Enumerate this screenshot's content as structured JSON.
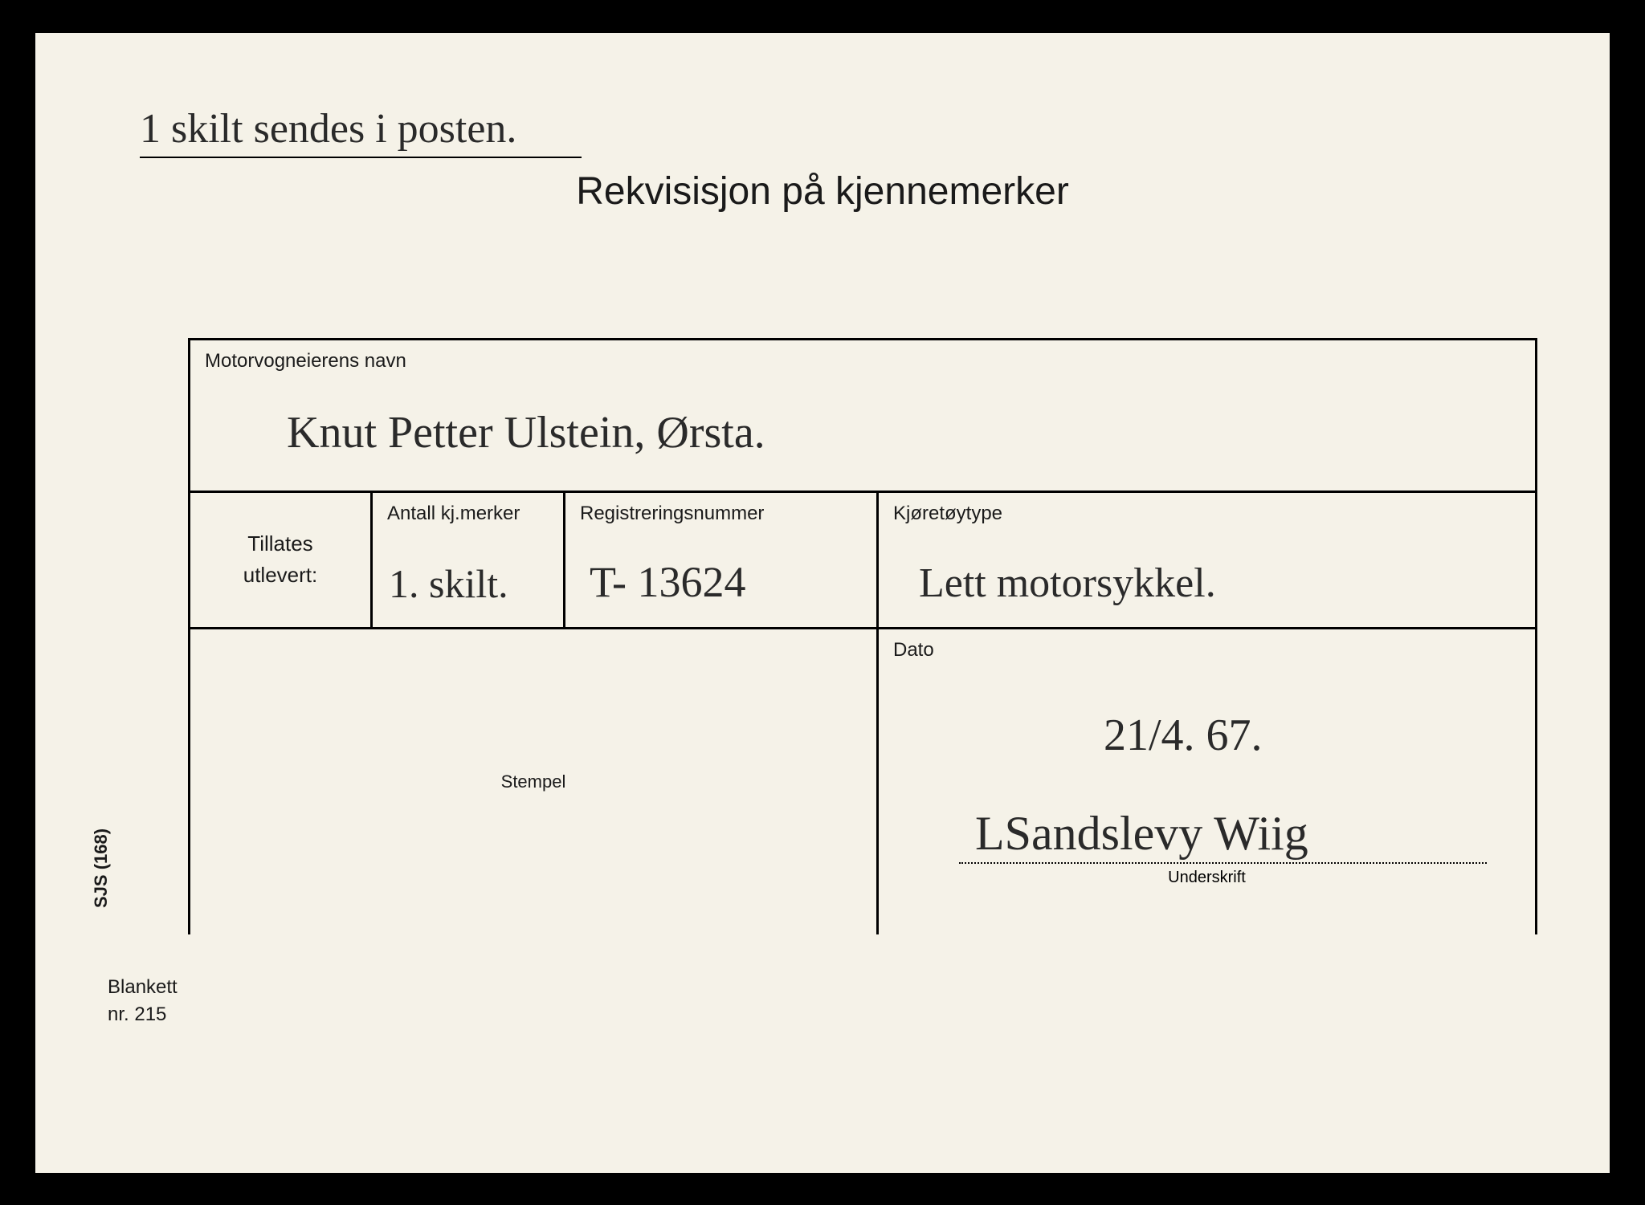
{
  "document": {
    "top_note": "1 skilt sendes i posten.",
    "title": "Rekvisisjon på kjennemerker",
    "side_code": "SJS (168)",
    "blankett_label": "Blankett",
    "blankett_nr": "nr. 215"
  },
  "fields": {
    "name": {
      "label": "Motorvogneierens navn",
      "value": "Knut Petter Ulstein, Ørsta."
    },
    "tillates": {
      "label_line1": "Tillates",
      "label_line2": "utlevert:"
    },
    "antall": {
      "label": "Antall kj.merker",
      "value": "1. skilt."
    },
    "regnr": {
      "label": "Registreringsnummer",
      "value": "T- 13624"
    },
    "kjoretoy": {
      "label": "Kjøretøytype",
      "value": "Lett motorsykkel."
    },
    "stempel": {
      "label": "Stempel"
    },
    "dato": {
      "label": "Dato",
      "value": "21/4. 67."
    },
    "underskrift": {
      "label": "Underskrift",
      "value": "LSandslevy Wiig"
    }
  },
  "styling": {
    "paper_bg": "#f5f2e8",
    "border_color": "#000000",
    "text_color": "#1a1a1a",
    "handwriting_color": "#2a2a2a",
    "title_fontsize": 48,
    "label_fontsize": 24,
    "handwriting_fontsize": 56,
    "border_width": 3
  }
}
